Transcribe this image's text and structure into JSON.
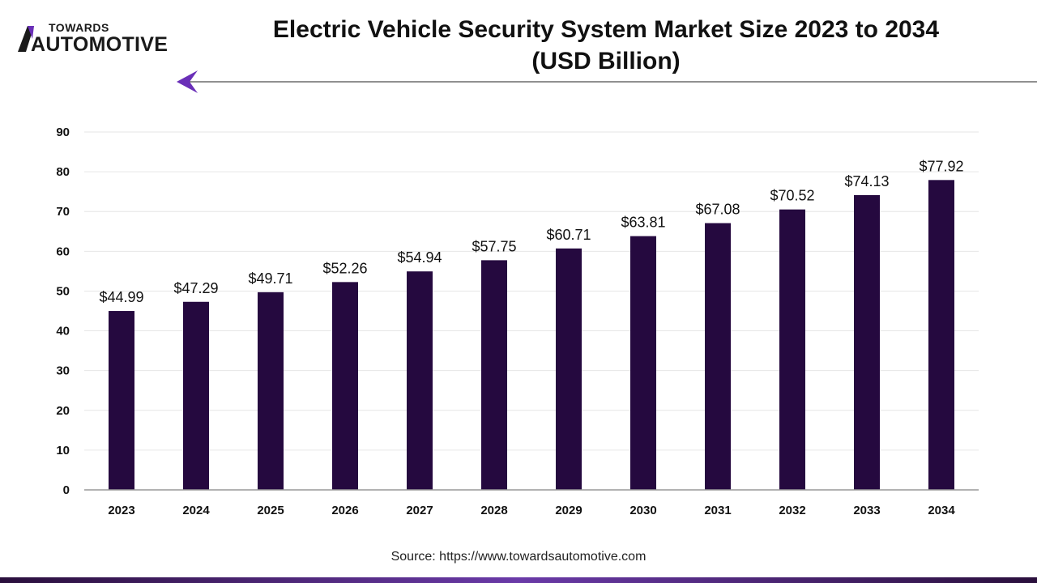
{
  "header": {
    "logo_top": "TOWARDS",
    "logo_bottom": "AUTOMOTIVE",
    "title_line1": "Electric Vehicle Security System Market Size 2023 to 2034",
    "title_line2": "(USD Billion)"
  },
  "footer": {
    "source": "Source: https://www.towardsautomotive.com"
  },
  "colors": {
    "bar": "#25093f",
    "accent": "#6a2fb8",
    "grid": "#e6e6e6",
    "axis": "#999999"
  },
  "chart_data": {
    "type": "bar",
    "title": "Electric Vehicle Security System Market Size 2023 to 2034 (USD Billion)",
    "xlabel": "",
    "ylabel": "",
    "categories": [
      "2023",
      "2024",
      "2025",
      "2026",
      "2027",
      "2028",
      "2029",
      "2030",
      "2031",
      "2032",
      "2033",
      "2034"
    ],
    "values": [
      44.99,
      47.29,
      49.71,
      52.26,
      54.94,
      57.75,
      60.71,
      63.81,
      67.08,
      70.52,
      74.13,
      77.92
    ],
    "data_labels": [
      "$44.99",
      "$47.29",
      "$49.71",
      "$52.26",
      "$54.94",
      "$57.75",
      "$60.71",
      "$63.81",
      "$67.08",
      "$70.52",
      "$74.13",
      "$77.92"
    ],
    "yticks": [
      "0",
      "10",
      "20",
      "30",
      "40",
      "50",
      "60",
      "70",
      "80",
      "90"
    ],
    "ylim": [
      0,
      90
    ],
    "grid": true,
    "legend": "none"
  }
}
